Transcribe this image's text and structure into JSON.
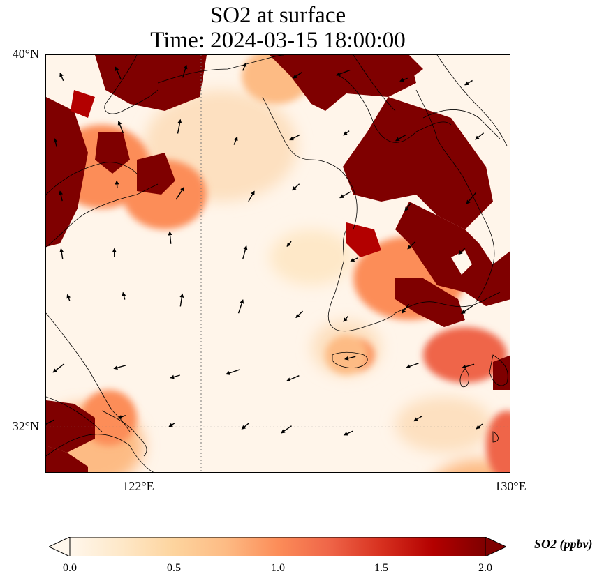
{
  "title": {
    "line1": "SO2 at surface",
    "line2": "Time: 2024-03-15 18:00:00"
  },
  "map": {
    "extent": {
      "lon_min": 118,
      "lon_max": 130,
      "lat_min": 31,
      "lat_max": 40
    },
    "lat_labels": [
      {
        "lat": 40,
        "label": "40°N"
      },
      {
        "lat": 32,
        "label": "32°N"
      }
    ],
    "lon_labels": [
      {
        "lon": 122,
        "label": "122°E"
      },
      {
        "lon": 130,
        "label": "130°E"
      }
    ],
    "gridlines": {
      "lon": 122,
      "lat": 32
    }
  },
  "colorbar": {
    "label": "SO2 (ppbv)",
    "min": 0.0,
    "max": 2.0,
    "ticks": [
      "0.0",
      "0.5",
      "1.0",
      "1.5",
      "2.0"
    ],
    "colors": [
      "#fff7ec",
      "#fee8c8",
      "#fdd49e",
      "#fdbb84",
      "#fc8d59",
      "#ef6548",
      "#d7301f",
      "#b30000",
      "#7f0000"
    ],
    "extend": "both"
  },
  "colors": {
    "high": "#7f0000",
    "background": "#ffffff",
    "coast": "#000000"
  }
}
